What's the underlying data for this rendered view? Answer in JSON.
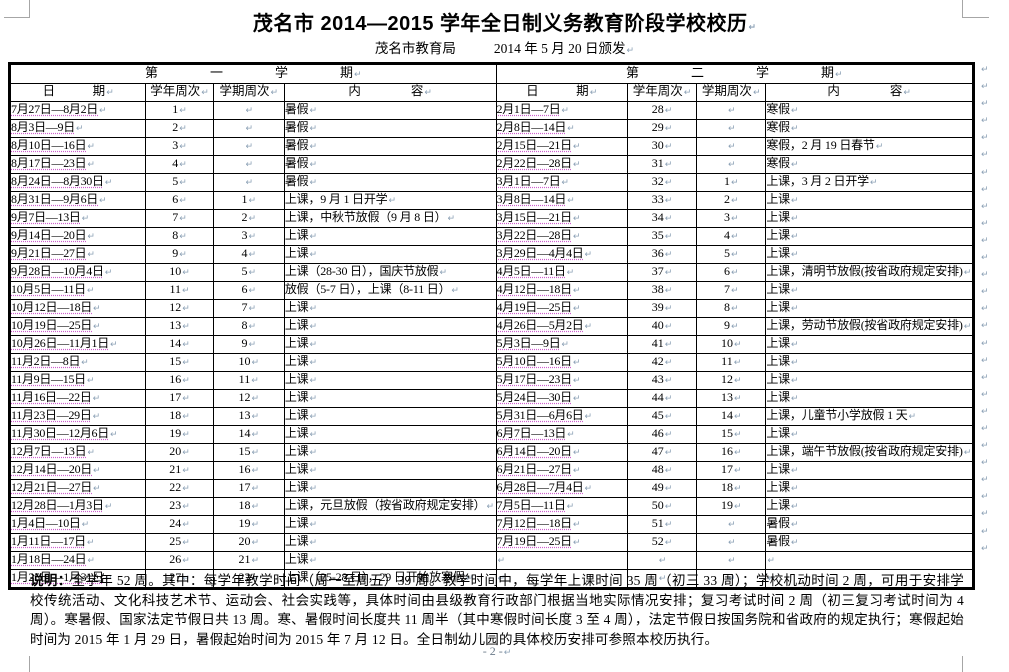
{
  "marks": {
    "eol": "↵"
  },
  "header": {
    "title": "茂名市 2014—2015 学年全日制义务教育阶段学校校历",
    "issuer": "茂名市教育局",
    "issue_date": "2014 年 5 月 20 日颁发"
  },
  "table": {
    "sem1_title": "第　　　　一　　　　学　　　　期",
    "sem2_title": "第　　　　二　　　　学　　　　期",
    "columns": [
      "日　　　期",
      "学年周次",
      "学期周次",
      "内　　　　容"
    ],
    "sem1": [
      {
        "d": "7月27日—8月2日",
        "y": "1",
        "s": "",
        "c": "暑假"
      },
      {
        "d": "8月3日—9日",
        "y": "2",
        "s": "",
        "c": "暑假"
      },
      {
        "d": "8月10日—16日",
        "y": "3",
        "s": "",
        "c": "暑假"
      },
      {
        "d": "8月17日—23日",
        "y": "4",
        "s": "",
        "c": "暑假"
      },
      {
        "d": "8月24日—8月30日",
        "y": "5",
        "s": "",
        "c": "暑假"
      },
      {
        "d": "8月31日—9月6日",
        "y": "6",
        "s": "1",
        "c": "上课，9 月 1 日开学"
      },
      {
        "d": "9月7日—13日",
        "y": "7",
        "s": "2",
        "c": "上课，中秋节放假（9 月 8 日）"
      },
      {
        "d": "9月14日—20日",
        "y": "8",
        "s": "3",
        "c": "上课"
      },
      {
        "d": "9月21日—27日",
        "y": "9",
        "s": "4",
        "c": "上课"
      },
      {
        "d": "9月28日—10月4日",
        "y": "10",
        "s": "5",
        "c": "上课（28-30 日），国庆节放假"
      },
      {
        "d": "10月5日—11日",
        "y": "11",
        "s": "6",
        "c": "放假（5-7 日），上课（8-11 日）"
      },
      {
        "d": "10月12日—18日",
        "y": "12",
        "s": "7",
        "c": "上课"
      },
      {
        "d": "10月19日—25日",
        "y": "13",
        "s": "8",
        "c": "上课"
      },
      {
        "d": "10月26日—11月1日",
        "y": "14",
        "s": "9",
        "c": "上课"
      },
      {
        "d": "11月2日—8日",
        "y": "15",
        "s": "10",
        "c": "上课"
      },
      {
        "d": "11月9日—15日",
        "y": "16",
        "s": "11",
        "c": "上课"
      },
      {
        "d": "11月16日—22日",
        "y": "17",
        "s": "12",
        "c": "上课"
      },
      {
        "d": "11月23日—29日",
        "y": "18",
        "s": "13",
        "c": "上课"
      },
      {
        "d": "11月30日—12月6日",
        "y": "19",
        "s": "14",
        "c": "上课"
      },
      {
        "d": "12月7日—13日",
        "y": "20",
        "s": "15",
        "c": "上课"
      },
      {
        "d": "12月14日—20日",
        "y": "21",
        "s": "16",
        "c": "上课"
      },
      {
        "d": "12月21日—27日",
        "y": "22",
        "s": "17",
        "c": "上课"
      },
      {
        "d": "12月28日—1月3日",
        "y": "23",
        "s": "18",
        "c": "上课，元旦放假（按省政府规定安排）"
      },
      {
        "d": "1月4日—10日",
        "y": "24",
        "s": "19",
        "c": "上课"
      },
      {
        "d": "1月11日—17日",
        "y": "25",
        "s": "20",
        "c": "上课"
      },
      {
        "d": "1月18日—24日",
        "y": "26",
        "s": "21",
        "c": "上课"
      },
      {
        "d": "1月25日—1月31日",
        "y": "27",
        "s": "22",
        "c": "上课（25-28 日），29 日开始放寒假"
      }
    ],
    "sem2": [
      {
        "d": "2月1日—7日",
        "y": "28",
        "s": "",
        "c": "寒假"
      },
      {
        "d": "2月8日—14日",
        "y": "29",
        "s": "",
        "c": "寒假"
      },
      {
        "d": "2月15日—21日",
        "y": "30",
        "s": "",
        "c": "寒假，2 月 19 日春节"
      },
      {
        "d": "2月22日—28日",
        "y": "31",
        "s": "",
        "c": "寒假"
      },
      {
        "d": "3月1日—7日",
        "y": "32",
        "s": "1",
        "c": "上课，3 月 2 日开学"
      },
      {
        "d": "3月8日—14日",
        "y": "33",
        "s": "2",
        "c": "上课"
      },
      {
        "d": "3月15日—21日",
        "y": "34",
        "s": "3",
        "c": "上课"
      },
      {
        "d": "3月22日—28日",
        "y": "35",
        "s": "4",
        "c": "上课"
      },
      {
        "d": "3月29日—4月4日",
        "y": "36",
        "s": "5",
        "c": "上课"
      },
      {
        "d": "4月5日—11日",
        "y": "37",
        "s": "6",
        "c": "上课，清明节放假(按省政府规定安排)"
      },
      {
        "d": "4月12日—18日",
        "y": "38",
        "s": "7",
        "c": "上课"
      },
      {
        "d": "4月19日—25日",
        "y": "39",
        "s": "8",
        "c": "上课"
      },
      {
        "d": "4月26日—5月2日",
        "y": "40",
        "s": "9",
        "c": "上课，劳动节放假(按省政府规定安排)"
      },
      {
        "d": "5月3日—9日",
        "y": "41",
        "s": "10",
        "c": "上课"
      },
      {
        "d": "5月10日—16日",
        "y": "42",
        "s": "11",
        "c": "上课"
      },
      {
        "d": "5月17日—23日",
        "y": "43",
        "s": "12",
        "c": "上课"
      },
      {
        "d": "5月24日—30日",
        "y": "44",
        "s": "13",
        "c": "上课"
      },
      {
        "d": "5月31日—6月6日",
        "y": "45",
        "s": "14",
        "c": "上课，儿童节小学放假 1 天"
      },
      {
        "d": "6月7日—13日",
        "y": "46",
        "s": "15",
        "c": "上课"
      },
      {
        "d": "6月14日—20日",
        "y": "47",
        "s": "16",
        "c": "上课，端午节放假(按省政府规定安排)"
      },
      {
        "d": "6月21日—27日",
        "y": "48",
        "s": "17",
        "c": "上课"
      },
      {
        "d": "6月28日—7月4日",
        "y": "49",
        "s": "18",
        "c": "上课"
      },
      {
        "d": "7月5日—11日",
        "y": "50",
        "s": "19",
        "c": "上课"
      },
      {
        "d": "7月12日—18日",
        "y": "51",
        "s": "",
        "c": "暑假"
      },
      {
        "d": "7月19日—25日",
        "y": "52",
        "s": "",
        "c": "暑假"
      },
      {
        "d": "",
        "y": "",
        "s": "",
        "c": ""
      },
      {
        "d": "",
        "y": "",
        "s": "",
        "c": ""
      }
    ]
  },
  "note": {
    "label": "说明：",
    "text": "全学年 52 周。其中：每学年教学时间（周一至周五）39 周。教学时间中，每学年上课时间 35 周（初三 33 周）；学校机动时间 2 周，可用于安排学校传统活动、文化科技艺术节、运动会、社会实践等，具体时间由县级教育行政部门根据当地实际情况安排；复习考试时间 2 周（初三复习考试时间为 4 周）。寒暑假、国家法定节假日共 13 周。寒、暑假时间长度共 11 周半（其中寒假时间长度 3 至 4 周），法定节假日按国务院和省政府的规定执行；寒假起始时间为 2015 年 1 月 29 日，暑假起始时间为 2015 年 7 月 12 日。全日制幼儿园的具体校历安排可参照本校历执行。"
  },
  "footer": {
    "page_number": "- 2 -"
  }
}
